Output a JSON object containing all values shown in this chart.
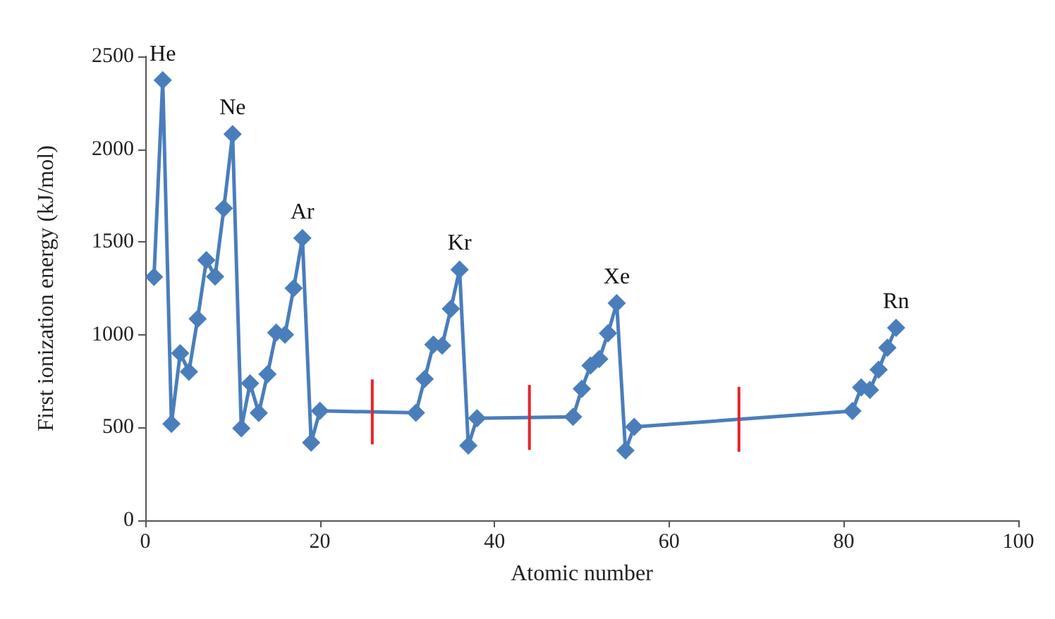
{
  "chart_data": {
    "type": "line",
    "xlabel": "Atomic number",
    "ylabel": "First ionization energy (kJ/mol)",
    "x": [
      1,
      2,
      3,
      4,
      5,
      6,
      7,
      8,
      9,
      10,
      11,
      12,
      13,
      14,
      15,
      16,
      17,
      18,
      19,
      20,
      31,
      32,
      33,
      34,
      35,
      36,
      37,
      38,
      49,
      50,
      51,
      52,
      53,
      54,
      55,
      56,
      81,
      82,
      83,
      84,
      85,
      86
    ],
    "series": [
      {
        "color": "#4a7ebb",
        "values": [
          1312,
          2372,
          520,
          900,
          801,
          1086,
          1402,
          1314,
          1681,
          2081,
          496,
          738,
          578,
          787,
          1012,
          1000,
          1251,
          1521,
          419,
          590,
          579,
          762,
          947,
          941,
          1140,
          1351,
          403,
          550,
          558,
          709,
          834,
          869,
          1008,
          1170,
          376,
          503,
          589,
          716,
          703,
          812,
          930,
          1037
        ]
      }
    ],
    "xlim": [
      0,
      100
    ],
    "xticks": [
      0,
      20,
      40,
      60,
      80,
      100
    ],
    "ylim": [
      0,
      2500
    ],
    "yticks": [
      0,
      500,
      1000,
      1500,
      2000,
      2500
    ],
    "marker": "diamond",
    "line_style": "solid",
    "annotations": [
      {
        "text": "He",
        "x": 2,
        "y": 2372
      },
      {
        "text": "Ne",
        "x": 10,
        "y": 2081
      },
      {
        "text": "Ar",
        "x": 18,
        "y": 1521
      },
      {
        "text": "Kr",
        "x": 36,
        "y": 1351
      },
      {
        "text": "Xe",
        "x": 54,
        "y": 1170
      },
      {
        "text": "Rn",
        "x": 86,
        "y": 1037
      }
    ],
    "ref_lines": [
      {
        "axis": "x",
        "value": 26,
        "color": "#e8242b"
      },
      {
        "axis": "x",
        "value": 44,
        "color": "#e8242b"
      },
      {
        "axis": "x",
        "value": 68,
        "color": "#e8242b"
      }
    ]
  }
}
